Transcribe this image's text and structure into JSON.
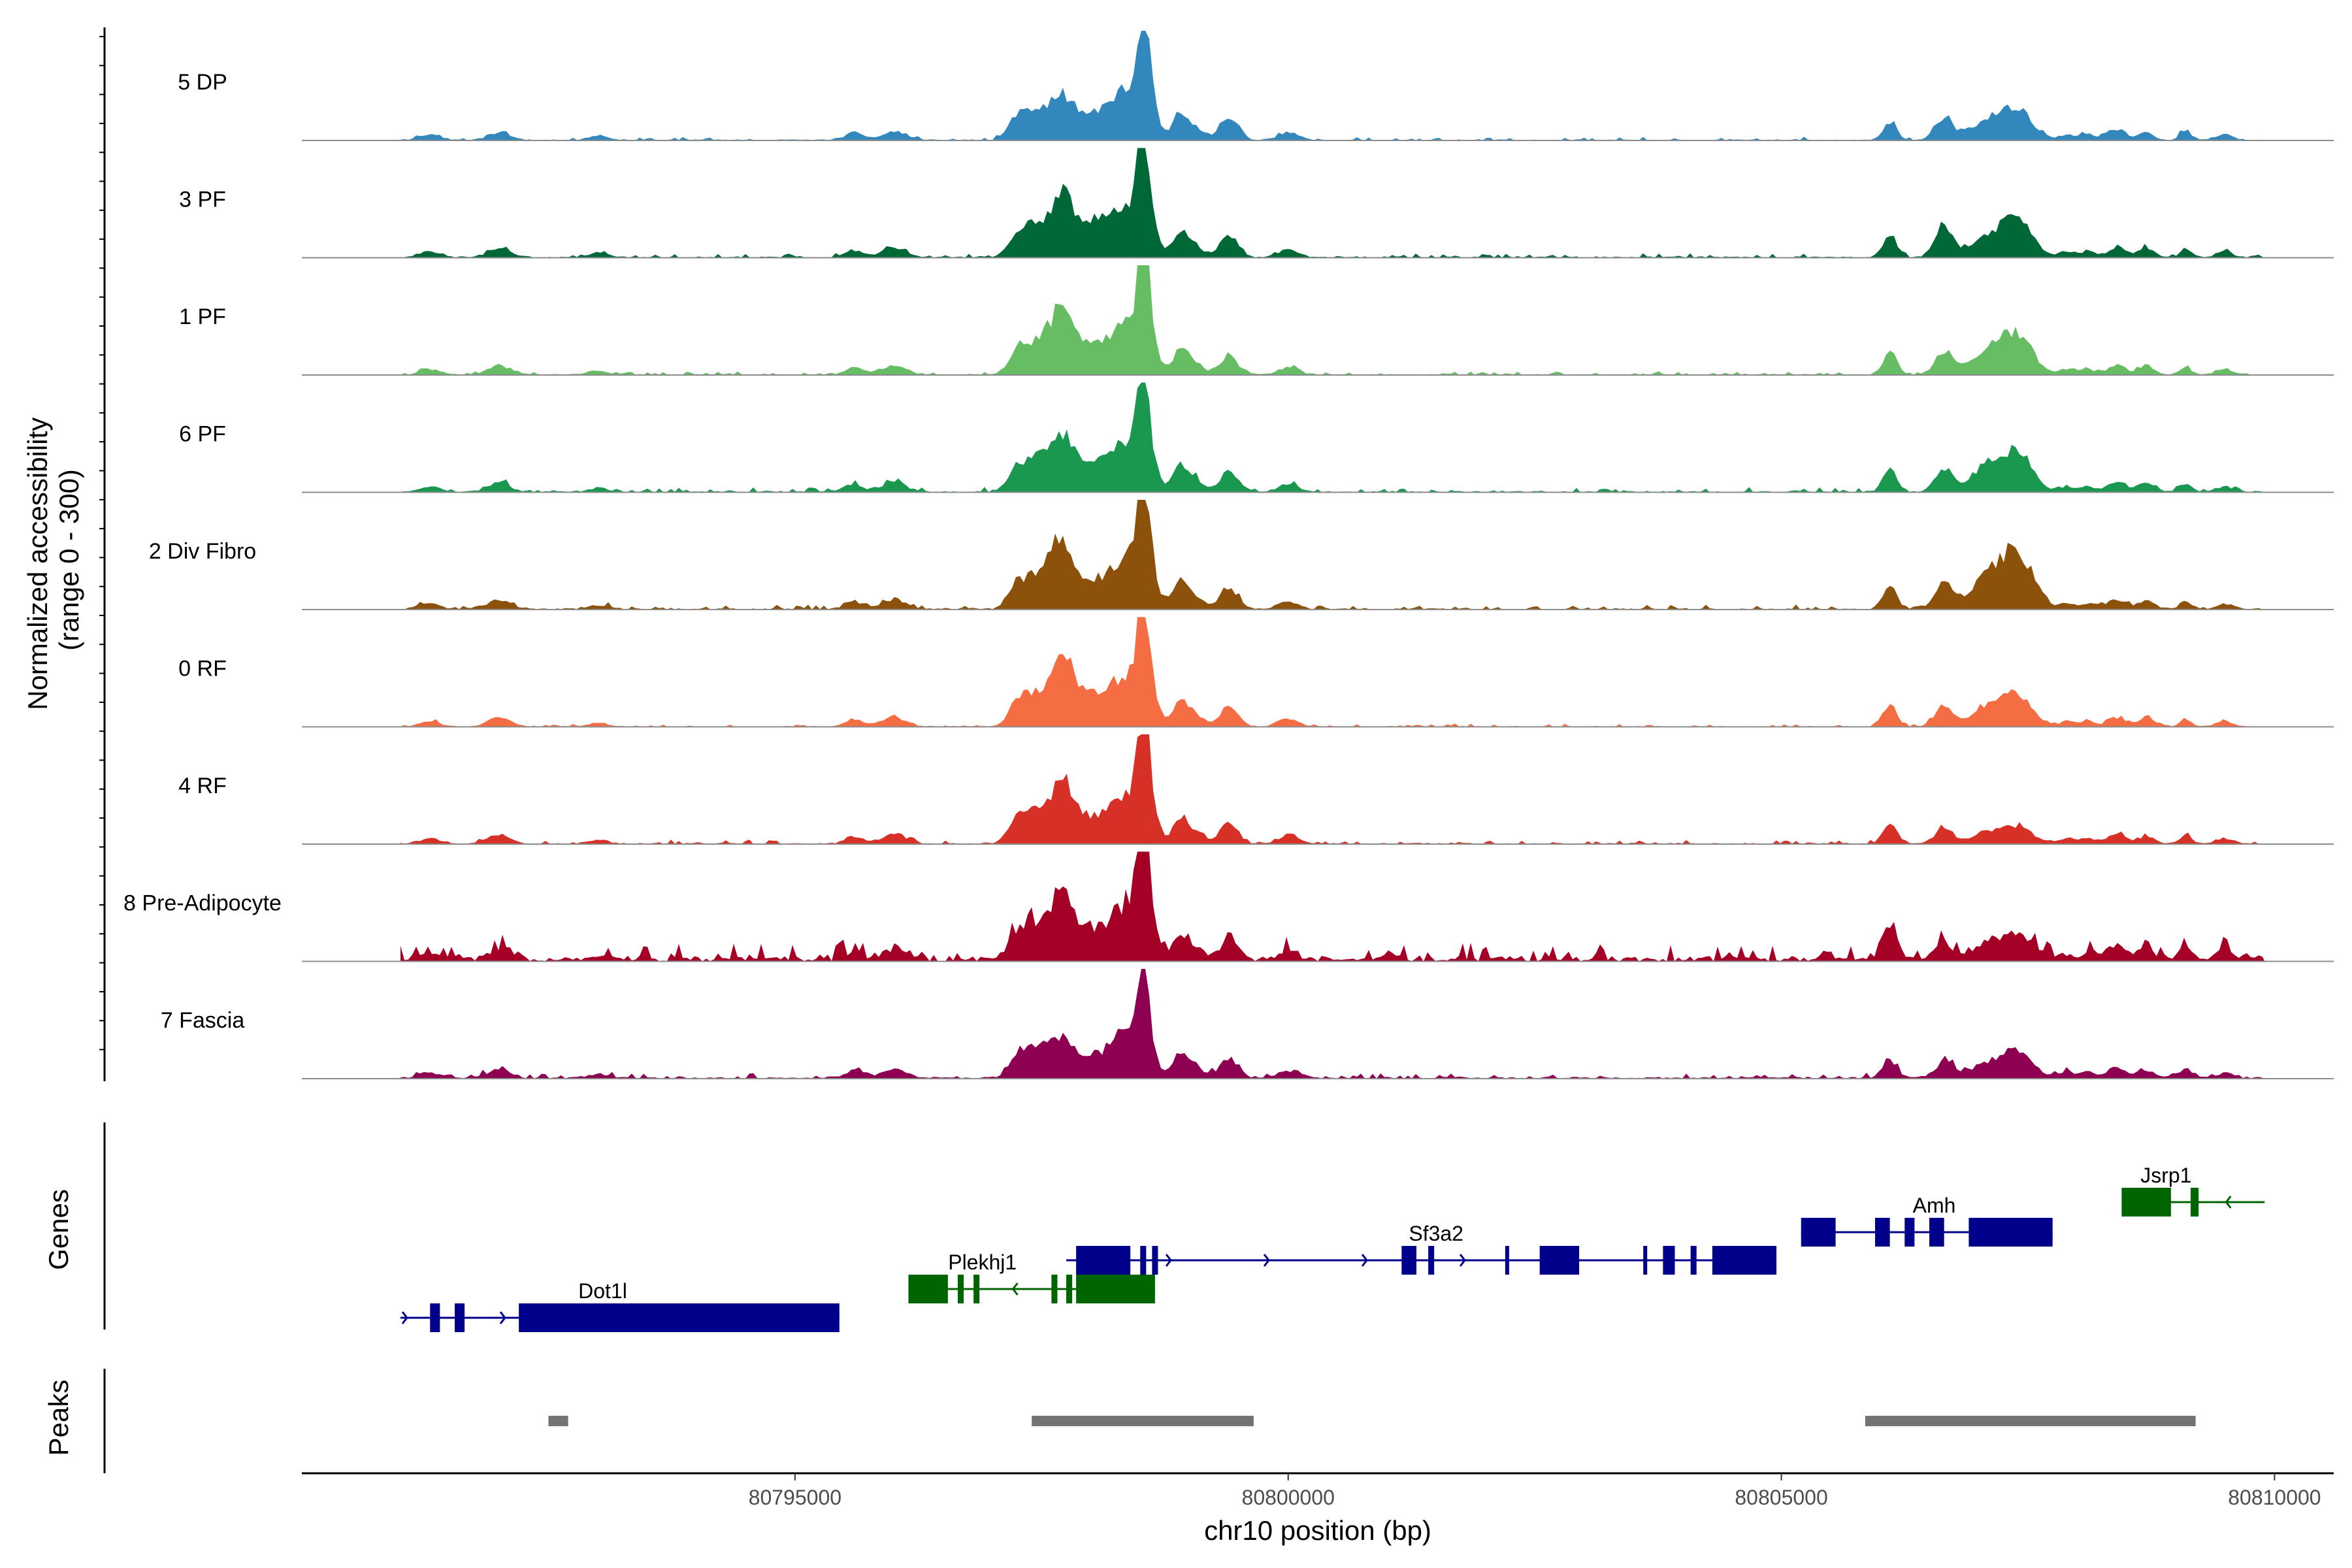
{
  "chart_data": {
    "type": "area",
    "title": "",
    "chromosome": "chr10",
    "xlim": [
      80790000,
      80810600
    ],
    "xlabel": "chr10 position (bp)",
    "ylabel_line1": "Normalized accessibility",
    "ylabel_line2": "(range 0 - 300)",
    "y_range": [
      0,
      300
    ],
    "x_ticks": [
      80795000,
      80800000,
      80805000,
      80810000
    ],
    "x_tick_labels": [
      "80795000",
      "80800000",
      "80805000",
      "80810000"
    ],
    "peak_centers": [
      80797700,
      80798550,
      80806100,
      80807400
    ],
    "tracks": [
      {
        "name": "5 DP",
        "color": "#3288BD",
        "peaks": [
          95,
          200,
          70,
          55,
          80,
          30,
          140,
          60,
          110,
          60,
          20,
          50,
          60,
          80,
          50,
          15,
          25,
          20,
          20,
          15,
          10,
          20,
          25,
          15,
          30,
          15
        ],
        "noise": 6,
        "lo": 80791000,
        "hi": 80809900
      },
      {
        "name": "3 PF",
        "color": "#006837",
        "peaks": [
          135,
          180,
          95,
          55,
          80,
          30,
          185,
          60,
          110,
          60,
          20,
          60,
          90,
          100,
          50,
          15,
          25,
          20,
          25,
          15,
          10,
          25,
          20,
          15,
          25,
          15
        ],
        "noise": 7,
        "lo": 80791000,
        "hi": 80809900
      },
      {
        "name": "1 PF",
        "color": "#66BD63",
        "peaks": [
          155,
          200,
          75,
          55,
          80,
          30,
          200,
          60,
          110,
          50,
          20,
          60,
          60,
          100,
          65,
          15,
          25,
          20,
          25,
          15,
          10,
          25,
          20,
          15,
          25,
          15
        ],
        "noise": 6,
        "lo": 80791000,
        "hi": 80809900
      },
      {
        "name": "6 PF",
        "color": "#1A9850",
        "peaks": [
          135,
          165,
          75,
          55,
          80,
          30,
          200,
          60,
          110,
          55,
          20,
          60,
          60,
          100,
          65,
          15,
          25,
          20,
          25,
          15,
          10,
          25,
          20,
          15,
          25,
          15
        ],
        "noise": 8,
        "lo": 80791000,
        "hi": 80809900
      },
      {
        "name": "2 Div Fibro",
        "color": "#8C510A",
        "peaks": [
          165,
          200,
          75,
          55,
          80,
          30,
          200,
          70,
          110,
          60,
          20,
          60,
          75,
          140,
          90,
          15,
          25,
          20,
          25,
          15,
          10,
          25,
          20,
          15,
          25,
          15
        ],
        "noise": 8,
        "lo": 80791000,
        "hi": 80809900
      },
      {
        "name": "0 RF",
        "color": "#F46D43",
        "peaks": [
          165,
          190,
          85,
          55,
          80,
          30,
          200,
          60,
          110,
          55,
          20,
          60,
          60,
          80,
          50,
          15,
          25,
          20,
          25,
          15,
          10,
          25,
          20,
          15,
          25,
          15
        ],
        "noise": 5,
        "lo": 80791000,
        "hi": 80809900
      },
      {
        "name": "4 RF",
        "color": "#D73027",
        "peaks": [
          140,
          200,
          70,
          55,
          80,
          30,
          200,
          60,
          110,
          60,
          20,
          55,
          40,
          40,
          30,
          15,
          25,
          20,
          25,
          15,
          10,
          20,
          25,
          15,
          30,
          15
        ],
        "noise": 7,
        "lo": 80791000,
        "hi": 80809900
      },
      {
        "name": "8 Pre-Adipocyte",
        "color": "#A50026",
        "peaks": [
          160,
          220,
          75,
          55,
          80,
          30,
          200,
          60,
          110,
          60,
          20,
          105,
          45,
          65,
          40,
          15,
          25,
          20,
          30,
          15,
          10,
          25,
          40,
          30,
          40,
          15
        ],
        "noise": 30,
        "lo": 80791000,
        "hi": 80809900
      },
      {
        "name": "7 Fascia",
        "color": "#8E0152",
        "peaks": [
          85,
          120,
          55,
          55,
          80,
          30,
          200,
          60,
          110,
          55,
          20,
          50,
          45,
          65,
          40,
          15,
          25,
          20,
          25,
          15,
          10,
          20,
          25,
          15,
          30,
          15
        ],
        "noise": 10,
        "lo": 80791000,
        "hi": 80809900
      }
    ],
    "genes": [
      {
        "name": "Dot1l",
        "strand": "+",
        "color": "#00008B",
        "start": 80791000,
        "end": 80795450,
        "label_pos": 80793050,
        "row": 3,
        "exons": [
          [
            80791300,
            80791400
          ],
          [
            80791550,
            80791650
          ],
          [
            80792200,
            80795450
          ]
        ]
      },
      {
        "name": "Plekhj1",
        "strand": "-",
        "color": "#006400",
        "start": 80796150,
        "end": 80798650,
        "label_pos": 80796900,
        "row": 2,
        "exons": [
          [
            80796150,
            80796550
          ],
          [
            80796650,
            80796710
          ],
          [
            80796810,
            80796870
          ],
          [
            80797600,
            80797660
          ],
          [
            80797750,
            80797810
          ],
          [
            80797850,
            80798650
          ]
        ]
      },
      {
        "name": "Sf3a2",
        "strand": "+",
        "color": "#00008B",
        "start": 80797750,
        "end": 80804950,
        "label_pos": 80801500,
        "row": 1,
        "exons": [
          [
            80797850,
            80798400
          ],
          [
            80798500,
            80798560
          ],
          [
            80798620,
            80798680
          ],
          [
            80801150,
            80801300
          ],
          [
            80801420,
            80801480
          ],
          [
            80802200,
            80802240
          ],
          [
            80802550,
            80802950
          ],
          [
            80803600,
            80803640
          ],
          [
            80803800,
            80803920
          ],
          [
            80804080,
            80804140
          ],
          [
            80804300,
            80804950
          ]
        ]
      },
      {
        "name": "Amh",
        "strand": "+",
        "color": "#00008B",
        "start": 80805200,
        "end": 80807750,
        "label_pos": 80806550,
        "row": 0,
        "exons": [
          [
            80805200,
            80805550
          ],
          [
            80805950,
            80806100
          ],
          [
            80806250,
            80806350
          ],
          [
            80806500,
            80806650
          ],
          [
            80806900,
            80807750
          ]
        ]
      },
      {
        "name": "Jsrp1",
        "strand": "-",
        "color": "#006400",
        "start": 80808450,
        "end": 80809900,
        "label_pos": 80808900,
        "row": -1,
        "exons": [
          [
            80808450,
            80808950
          ],
          [
            80809150,
            80809230
          ]
        ]
      }
    ],
    "peaks": [
      {
        "start": 80792500,
        "end": 80792700
      },
      {
        "start": 80797400,
        "end": 80799650
      },
      {
        "start": 80805850,
        "end": 80809200
      }
    ],
    "panel_titles": {
      "genes": "Genes",
      "peaks": "Peaks"
    }
  }
}
